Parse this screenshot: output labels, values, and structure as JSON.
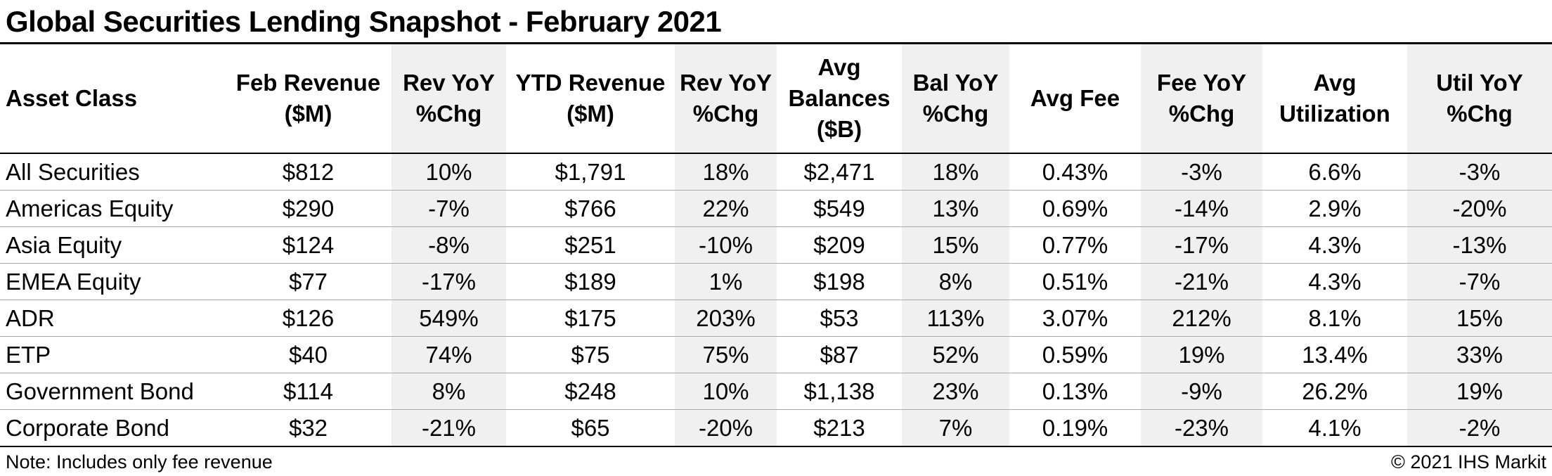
{
  "title": "Global Securities Lending Snapshot - February 2021",
  "table": {
    "headers": [
      [
        "Asset Class"
      ],
      [
        "Feb Revenue",
        "($M)"
      ],
      [
        "Rev YoY",
        "%Chg"
      ],
      [
        "YTD Revenue",
        "($M)"
      ],
      [
        "Rev YoY",
        "%Chg"
      ],
      [
        "Avg",
        "Balances",
        "($B)"
      ],
      [
        "Bal YoY",
        "%Chg"
      ],
      [
        "Avg Fee"
      ],
      [
        "Fee YoY",
        "%Chg"
      ],
      [
        "Avg",
        "Utilization"
      ],
      [
        "Util YoY",
        "%Chg"
      ]
    ],
    "rows": [
      [
        "All Securities",
        "$812",
        "10%",
        "$1,791",
        "18%",
        "$2,471",
        "18%",
        "0.43%",
        "-3%",
        "6.6%",
        "-3%"
      ],
      [
        "Americas Equity",
        "$290",
        "-7%",
        "$766",
        "22%",
        "$549",
        "13%",
        "0.69%",
        "-14%",
        "2.9%",
        "-20%"
      ],
      [
        "Asia Equity",
        "$124",
        "-8%",
        "$251",
        "-10%",
        "$209",
        "15%",
        "0.77%",
        "-17%",
        "4.3%",
        "-13%"
      ],
      [
        "EMEA Equity",
        "$77",
        "-17%",
        "$189",
        "1%",
        "$198",
        "8%",
        "0.51%",
        "-21%",
        "4.3%",
        "-7%"
      ],
      [
        "ADR",
        "$126",
        "549%",
        "$175",
        "203%",
        "$53",
        "113%",
        "3.07%",
        "212%",
        "8.1%",
        "15%"
      ],
      [
        "ETP",
        "$40",
        "74%",
        "$75",
        "75%",
        "$87",
        "52%",
        "0.59%",
        "19%",
        "13.4%",
        "33%"
      ],
      [
        "Government Bond",
        "$114",
        "8%",
        "$248",
        "10%",
        "$1,138",
        "23%",
        "0.13%",
        "-9%",
        "26.2%",
        "19%"
      ],
      [
        "Corporate Bond",
        "$32",
        "-21%",
        "$65",
        "-20%",
        "$213",
        "7%",
        "0.19%",
        "-23%",
        "4.1%",
        "-2%"
      ]
    ]
  },
  "footer": {
    "note": "Note: Includes only fee revenue",
    "copyright": "© 2021 IHS Markit"
  },
  "colors": {
    "shaded_column": "#f0f0f0",
    "rule": "#000000",
    "row_divider": "#a8a8a8"
  }
}
